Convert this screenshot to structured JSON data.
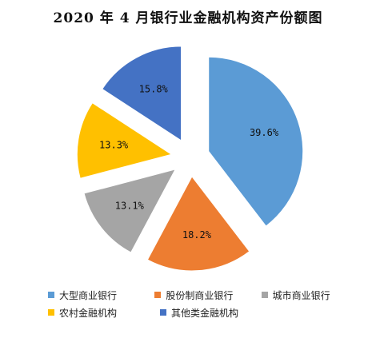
{
  "chart_data": {
    "type": "pie",
    "title": "2020 年 4 月银行业金融机构资产份额图",
    "unit": "%",
    "slices": [
      {
        "name": "大型商业银行",
        "value": 39.6,
        "label": "39.6%",
        "color": "#5B9BD5"
      },
      {
        "name": "股份制商业银行",
        "value": 18.2,
        "label": "18.2%",
        "color": "#ED7D31"
      },
      {
        "name": "城市商业银行",
        "value": 13.1,
        "label": "13.1%",
        "color": "#A5A5A5"
      },
      {
        "name": "农村金融机构",
        "value": 13.3,
        "label": "13.3%",
        "color": "#FFC000"
      },
      {
        "name": "其他类金融机构",
        "value": 15.8,
        "label": "15.8%",
        "color": "#4472C4"
      }
    ],
    "legend_position": "bottom",
    "exploded": true
  }
}
